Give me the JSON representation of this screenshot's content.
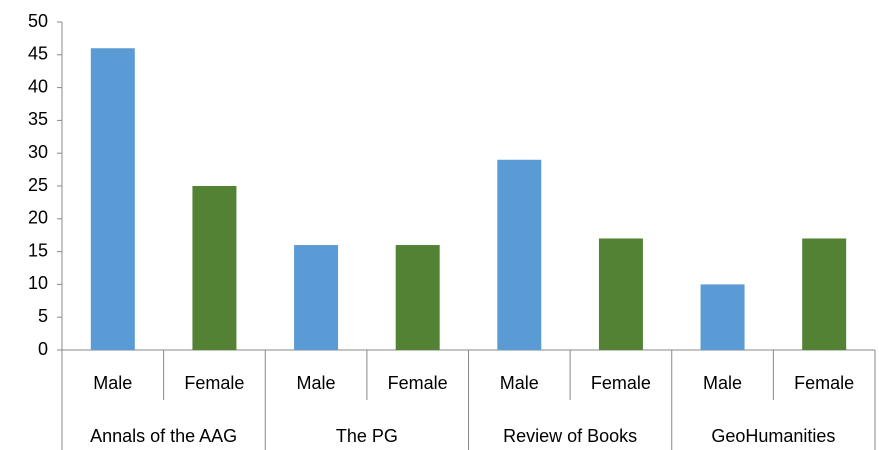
{
  "chart_data": {
    "type": "bar",
    "categories": [
      "Male",
      "Female",
      "Male",
      "Female",
      "Male",
      "Female",
      "Male",
      "Female"
    ],
    "groups": [
      "Annals of the AAG",
      "The PG",
      "Review of Books",
      "GeoHumanities"
    ],
    "values": [
      46,
      25,
      16,
      16,
      29,
      17,
      10,
      17
    ],
    "colors": [
      "#5b9bd5",
      "#548235",
      "#5b9bd5",
      "#548235",
      "#5b9bd5",
      "#548235",
      "#5b9bd5",
      "#548235"
    ],
    "ylim": [
      0,
      50
    ],
    "yticks": [
      0,
      5,
      10,
      15,
      20,
      25,
      30,
      35,
      40,
      45,
      50
    ],
    "grid": false
  }
}
